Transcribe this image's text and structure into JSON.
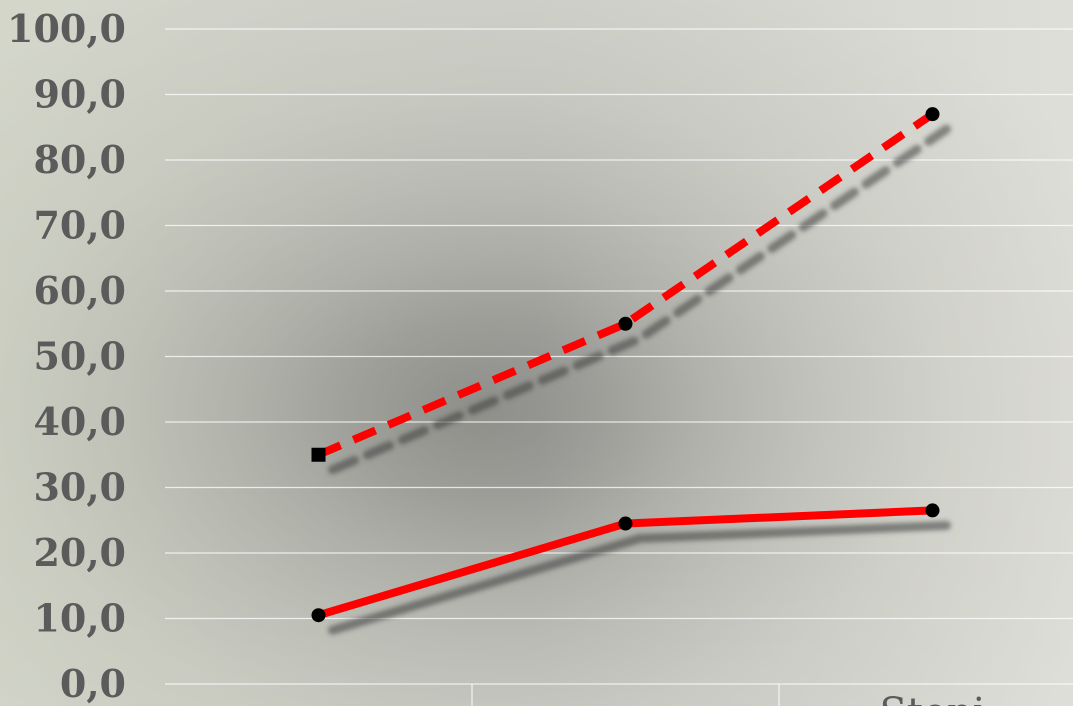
{
  "chart_data": {
    "type": "line",
    "title": "",
    "xlabel": "",
    "ylabel": "",
    "ylim": [
      0,
      100
    ],
    "y_tick_step": 10,
    "y_tick_labels": [
      "0,0",
      "10,0",
      "20,0",
      "30,0",
      "40,0",
      "50,0",
      "60,0",
      "70,0",
      "80,0",
      "90,0",
      "100,0"
    ],
    "grid": true,
    "legend": "none",
    "categories": [
      "",
      "",
      "Stopi"
    ],
    "series": [
      {
        "values": [
          35,
          55,
          87
        ],
        "color": "#ff0000",
        "style": "dashed",
        "markers": [
          "square",
          "circle",
          "circle"
        ]
      },
      {
        "values": [
          10.5,
          24.5,
          26.5
        ],
        "color": "#ff0000",
        "style": "solid",
        "markers": [
          "circle",
          "circle",
          "circle"
        ]
      }
    ]
  }
}
